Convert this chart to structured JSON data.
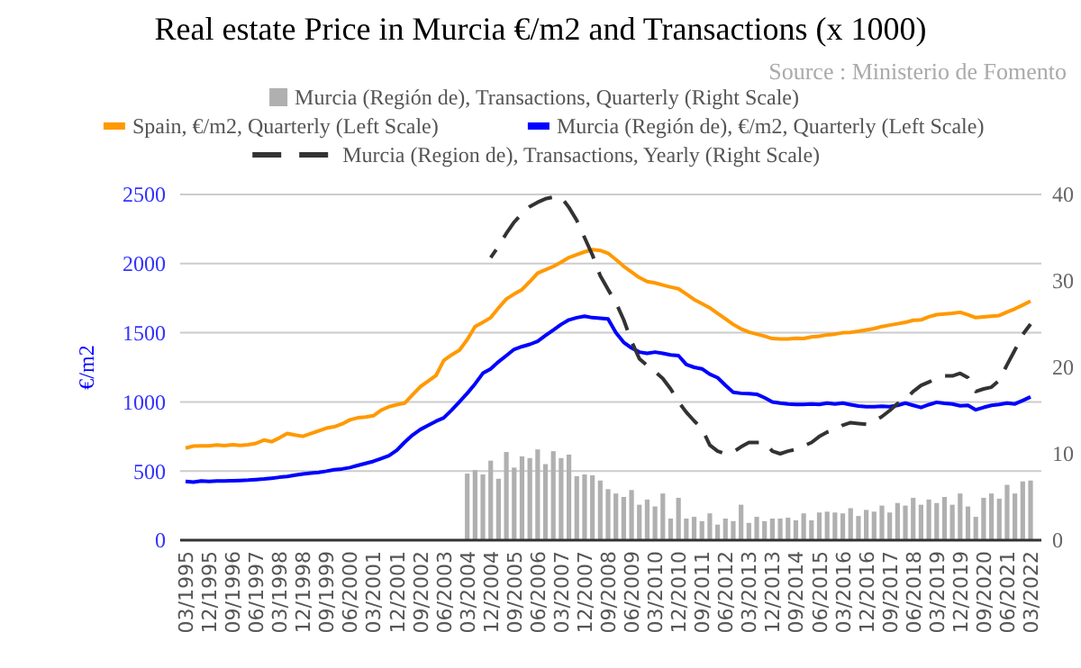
{
  "chart_data": {
    "type": "line",
    "title": "Real estate Price in Murcia €/m2 and Transactions (x 1000)",
    "ylabel": "€/m2",
    "annotations": [
      "Source : Ministerio de Fomento"
    ],
    "categories": [
      "03/1995",
      null,
      null,
      "12/1995",
      null,
      null,
      "09/1996",
      null,
      null,
      "06/1997",
      null,
      null,
      "03/1998",
      null,
      null,
      "12/1998",
      null,
      null,
      "09/1999",
      null,
      null,
      "06/2000",
      null,
      null,
      "03/2001",
      null,
      null,
      "12/2001",
      null,
      null,
      "09/2002",
      null,
      null,
      "06/2003",
      null,
      null,
      "03/2004",
      null,
      null,
      "12/2004",
      null,
      null,
      "09/2005",
      null,
      null,
      "06/2006",
      null,
      null,
      "03/2007",
      null,
      null,
      "12/2007",
      null,
      null,
      "09/2008",
      null,
      null,
      "06/2009",
      null,
      null,
      "03/2010",
      null,
      null,
      "12/2010",
      null,
      null,
      "09/2011",
      null,
      null,
      "06/2012",
      null,
      null,
      "03/2013",
      null,
      null,
      "12/2013",
      null,
      null,
      "09/2014",
      null,
      null,
      "06/2015",
      null,
      null,
      "03/2016",
      null,
      null,
      "12/2016",
      null,
      null,
      "09/2017",
      null,
      null,
      "06/2018",
      null,
      null,
      "03/2019",
      null,
      null,
      "12/2019",
      null,
      null,
      "09/2020",
      null,
      null,
      "06/2021",
      null,
      null,
      "03/2022"
    ],
    "ylim": [
      0,
      2500
    ],
    "yticks": [
      0,
      500,
      1000,
      1500,
      2000,
      2500
    ],
    "y2lim": [
      0,
      40
    ],
    "y2ticks": [
      0,
      10,
      20,
      30,
      40
    ],
    "grid": "y",
    "legend": "top",
    "series": [
      {
        "name": "Murcia (Región de), Transactions, Quarterly (Right Scale)",
        "type": "bar",
        "axis": "y2",
        "color": "#b0b0b0",
        "values": [
          null,
          null,
          null,
          null,
          null,
          null,
          null,
          null,
          null,
          null,
          null,
          null,
          null,
          null,
          null,
          null,
          null,
          null,
          null,
          null,
          null,
          null,
          null,
          null,
          null,
          null,
          null,
          null,
          null,
          null,
          null,
          null,
          null,
          null,
          null,
          null,
          7.7,
          8.1,
          7.6,
          9.2,
          7.1,
          10.2,
          8.4,
          9.7,
          9.5,
          10.5,
          8.8,
          10.3,
          9.5,
          9.9,
          7.4,
          7.6,
          7.5,
          6.9,
          5.9,
          5.4,
          5.0,
          5.8,
          4.1,
          4.7,
          3.9,
          5.4,
          2.5,
          4.9,
          2.5,
          2.7,
          2.2,
          3.1,
          1.8,
          2.5,
          2.2,
          4.1,
          2.0,
          2.7,
          2.2,
          2.5,
          2.5,
          2.6,
          2.3,
          3.1,
          2.3,
          3.2,
          3.3,
          3.2,
          3.1,
          3.7,
          2.8,
          3.5,
          3.3,
          4.0,
          3.2,
          4.3,
          4.0,
          4.9,
          4.1,
          4.7,
          4.3,
          5.0,
          4.1,
          5.4,
          3.9,
          2.7,
          4.9,
          5.4,
          4.8,
          6.4,
          5.4,
          6.8,
          6.9
        ]
      },
      {
        "name": "Spain, €/m2, Quarterly (Left Scale)",
        "color": "#ff9900",
        "values": [
          666,
          680,
          682,
          682,
          688,
          684,
          690,
          686,
          690,
          700,
          724,
          712,
          740,
          772,
          760,
          751,
          770,
          790,
          810,
          820,
          840,
          870,
          885,
          890,
          900,
          940,
          965,
          980,
          991,
          1050,
          1110,
          1150,
          1190,
          1300,
          1340,
          1374,
          1450,
          1545,
          1575,
          1609,
          1680,
          1744,
          1780,
          1812,
          1870,
          1931,
          1955,
          1979,
          2010,
          2044,
          2065,
          2085,
          2101,
          2095,
          2075,
          2030,
          1980,
          1940,
          1899,
          1870,
          1860,
          1845,
          1830,
          1818,
          1780,
          1740,
          1710,
          1680,
          1640,
          1600,
          1560,
          1528,
          1505,
          1490,
          1475,
          1458,
          1455,
          1455,
          1460,
          1458,
          1470,
          1475,
          1485,
          1490,
          1500,
          1503,
          1510,
          1520,
          1530,
          1545,
          1555,
          1565,
          1575,
          1590,
          1593,
          1615,
          1631,
          1635,
          1640,
          1648,
          1630,
          1609,
          1615,
          1620,
          1625,
          1650,
          1673,
          1700,
          1728
        ]
      },
      {
        "name": "Murcia (Región de), €/m2, Quarterly (Left Scale)",
        "color": "#0000ff",
        "values": [
          425,
          420,
          428,
          425,
          428,
          428,
          430,
          432,
          434,
          438,
          442,
          448,
          455,
          460,
          470,
          478,
          485,
          490,
          499,
          510,
          515,
          525,
          540,
          555,
          570,
          590,
          611,
          650,
          708,
          760,
          800,
          830,
          860,
          885,
          940,
          1000,
          1062,
          1130,
          1207,
          1239,
          1290,
          1335,
          1380,
          1400,
          1416,
          1438,
          1480,
          1520,
          1560,
          1593,
          1609,
          1619,
          1609,
          1605,
          1600,
          1500,
          1430,
          1390,
          1360,
          1351,
          1360,
          1351,
          1340,
          1335,
          1270,
          1250,
          1239,
          1200,
          1175,
          1120,
          1070,
          1062,
          1060,
          1055,
          1030,
          1000,
          991,
          985,
          982,
          982,
          985,
          982,
          991,
          985,
          991,
          980,
          970,
          965,
          965,
          968,
          965,
          975,
          991,
          975,
          959,
          980,
          997,
          990,
          985,
          972,
          975,
          943,
          960,
          975,
          982,
          991,
          985,
          1010,
          1036
        ]
      },
      {
        "name": "Murcia (Region de), Transactions, Yearly (Right Scale)",
        "axis": "y2",
        "line_style": "dashed",
        "color": "#333333",
        "values": [
          null,
          null,
          null,
          null,
          null,
          null,
          null,
          null,
          null,
          null,
          null,
          null,
          null,
          null,
          null,
          null,
          null,
          null,
          null,
          null,
          null,
          null,
          null,
          null,
          null,
          null,
          null,
          null,
          null,
          null,
          null,
          null,
          null,
          null,
          null,
          null,
          null,
          null,
          null,
          32.7,
          34,
          35.5,
          36.8,
          37.8,
          38.6,
          39.1,
          39.5,
          39.7,
          39.7,
          38.5,
          37,
          35,
          33,
          30.6,
          29,
          27.5,
          25.5,
          23,
          21,
          20.2,
          19.5,
          18.7,
          17.5,
          16,
          14.8,
          13.8,
          12.9,
          11,
          10.3,
          10,
          10.2,
          10.8,
          11.3,
          11.3,
          11.3,
          10.3,
          10,
          10.3,
          10.5,
          10.9,
          11.3,
          12,
          12.5,
          12.8,
          13.3,
          13.6,
          13.5,
          13.4,
          13.8,
          14.3,
          15,
          15.8,
          16.3,
          17.2,
          17.9,
          18.3,
          18.7,
          19,
          19,
          19.3,
          18.8,
          17.2,
          17.5,
          17.7,
          18.5,
          20.3,
          22,
          23.8,
          25
        ]
      }
    ]
  }
}
